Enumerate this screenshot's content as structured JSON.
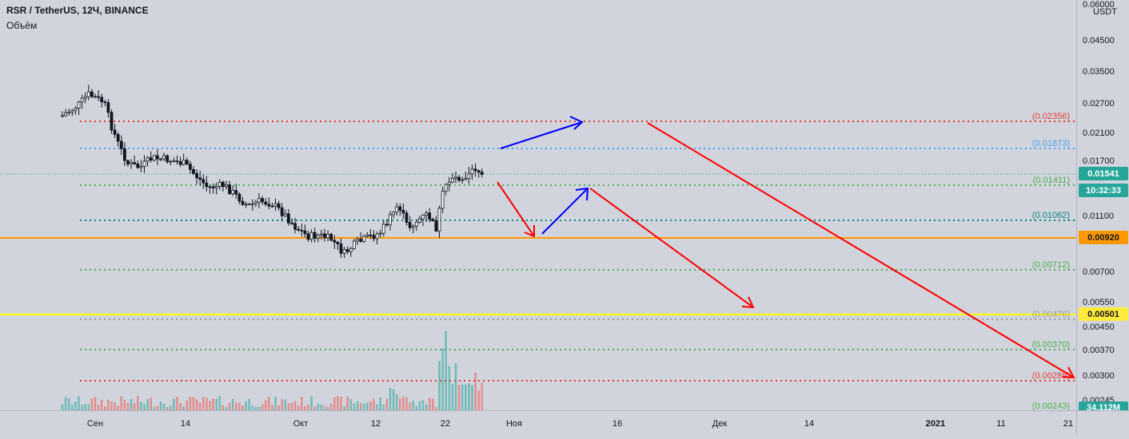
{
  "header": {
    "symbol_title": "RSR / TetherUS, 12Ч, BINANCE",
    "volume_label": "Объём"
  },
  "price_scale": {
    "unit": "USDT",
    "ticks": [
      "0.06000",
      "0.04500",
      "0.03500",
      "0.02700",
      "0.02100",
      "0.01700",
      "0.01100",
      "0.00700",
      "0.00550",
      "0.00450",
      "0.00370",
      "0.00300",
      "0.00245"
    ],
    "badges": [
      {
        "name": "last-price-badge",
        "value": "0.01541",
        "color": "#26a69a"
      },
      {
        "name": "countdown-badge",
        "value": "10:32:33",
        "color": "#26a69a"
      },
      {
        "name": "orange-level-badge",
        "value": "0.00920",
        "color": "#ff9800"
      },
      {
        "name": "yellow-level-badge",
        "value": "0.00501",
        "color": "#ffeb3b"
      },
      {
        "name": "volume-badge",
        "value": "34.112M",
        "color": "#26a69a"
      }
    ]
  },
  "time_scale": {
    "labels": [
      "Сен",
      "14",
      "Окт",
      "12",
      "22",
      "Ноя",
      "16",
      "Дек",
      "14",
      "2021",
      "11",
      "21"
    ]
  },
  "fib_levels": [
    {
      "label": "(0.02356)",
      "color": "#e53935"
    },
    {
      "label": "(0.01873)",
      "color": "#42a5f5"
    },
    {
      "label": "(0.01411)",
      "color": "#4caf50"
    },
    {
      "label": "(0.01062)",
      "color": "#00897b"
    },
    {
      "label": "(0.00712)",
      "color": "#4caf50"
    },
    {
      "label": "(0.00476)",
      "color": "#9e9e9e"
    },
    {
      "label": "(0.00370)",
      "color": "#4caf50"
    },
    {
      "label": "(0.00288)",
      "color": "#e53935"
    },
    {
      "label": "(0.00243)",
      "color": "#4caf50"
    }
  ],
  "colors": {
    "up": "#26a69a",
    "down": "#ef5350",
    "candle_outline": "#131722",
    "arrow_blue": "#0000ff",
    "arrow_red": "#ff0000",
    "level_orange": "#ff9800",
    "level_yellow": "#ffff00"
  }
}
